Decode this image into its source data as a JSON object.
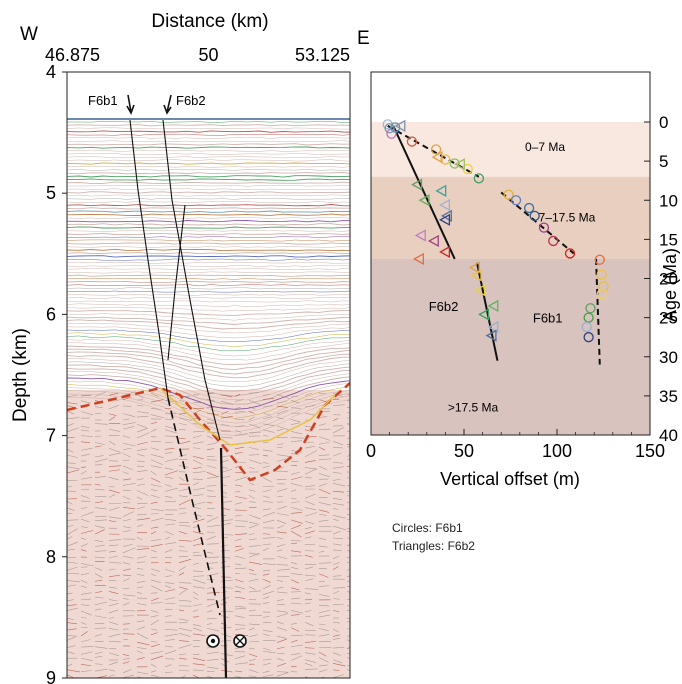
{
  "chart_data": [
    {
      "type": "seismic-section",
      "panel_letter": "W",
      "xlabel": "Distance (km)",
      "ylabel": "Depth (km)",
      "xlim": [
        46.875,
        53.125
      ],
      "ylim": [
        4,
        9
      ],
      "x_ticks": [
        "46.875",
        "50",
        "53.125"
      ],
      "y_ticks": [
        "4",
        "5",
        "6",
        "7",
        "8",
        "9"
      ],
      "faults": [
        {
          "name": "F6b1",
          "label": "F6b1"
        },
        {
          "name": "F6b2",
          "label": "F6b2"
        }
      ],
      "colors": {
        "basement": "#d04020",
        "seafloor": "#6a8ab0",
        "fault": "#111111"
      }
    },
    {
      "type": "scatter",
      "panel_letter": "E",
      "xlabel": "Vertical offset (m)",
      "ylabel": "Age (Ma)",
      "xlim": [
        0,
        150
      ],
      "ylim": [
        0,
        40
      ],
      "x_ticks": [
        "0",
        "50",
        "100",
        "150"
      ],
      "y_ticks": [
        "0",
        "5",
        "10",
        "15",
        "20",
        "25",
        "30",
        "35",
        "40"
      ],
      "zones": [
        {
          "label": "0–7 Ma",
          "from": 0,
          "to": 7,
          "color": "#f8e8e0"
        },
        {
          "label": "7–17.5 Ma",
          "from": 7,
          "to": 17.5,
          "color": "#e8cfc0"
        },
        {
          "label": ">17.5 Ma",
          "from": 17.5,
          "to": 40,
          "color": "#d8c3bf"
        }
      ],
      "series": [
        {
          "name": "F6b1",
          "marker": "circle",
          "points": [
            {
              "x": 9,
              "y": 0.3,
              "c": "#9ab8d8"
            },
            {
              "x": 10,
              "y": 0.8,
              "c": "#8090a8"
            },
            {
              "x": 11,
              "y": 1.5,
              "c": "#c070c0"
            },
            {
              "x": 13,
              "y": 0.7,
              "c": "#40a0c0"
            },
            {
              "x": 22,
              "y": 2.5,
              "c": "#d06040"
            },
            {
              "x": 35,
              "y": 3.5,
              "c": "#e0a040"
            },
            {
              "x": 40,
              "y": 4.8,
              "c": "#e8c040"
            },
            {
              "x": 45,
              "y": 5.3,
              "c": "#80c060"
            },
            {
              "x": 52,
              "y": 6.0,
              "c": "#f0d040"
            },
            {
              "x": 58,
              "y": 7.2,
              "c": "#40a060"
            },
            {
              "x": 74,
              "y": 9.3,
              "c": "#e0b040"
            },
            {
              "x": 78,
              "y": 10.0,
              "c": "#6080c0"
            },
            {
              "x": 85,
              "y": 11.0,
              "c": "#4070a0"
            },
            {
              "x": 88,
              "y": 12.0,
              "c": "#305080"
            },
            {
              "x": 93,
              "y": 13.5,
              "c": "#a04080"
            },
            {
              "x": 98,
              "y": 15.2,
              "c": "#c03050"
            },
            {
              "x": 107,
              "y": 16.8,
              "c": "#d02020"
            },
            {
              "x": 123,
              "y": 17.6,
              "c": "#e07040"
            },
            {
              "x": 124,
              "y": 19.5,
              "c": "#f0c040"
            },
            {
              "x": 125,
              "y": 21.0,
              "c": "#e8c040"
            },
            {
              "x": 124,
              "y": 22.0,
              "c": "#f0d060"
            },
            {
              "x": 118,
              "y": 23.8,
              "c": "#60a060"
            },
            {
              "x": 117,
              "y": 25.0,
              "c": "#40a040"
            },
            {
              "x": 116,
              "y": 26.2,
              "c": "#9ab0d0"
            },
            {
              "x": 117,
              "y": 27.5,
              "c": "#304080"
            }
          ]
        },
        {
          "name": "F6b2",
          "marker": "triangle",
          "points": [
            {
              "x": 16,
              "y": 0.5,
              "c": "#8090a8"
            },
            {
              "x": 36,
              "y": 4.5,
              "c": "#e8a040"
            },
            {
              "x": 48,
              "y": 5.4,
              "c": "#a0c060"
            },
            {
              "x": 25,
              "y": 8.0,
              "c": "#60a060"
            },
            {
              "x": 29,
              "y": 10.0,
              "c": "#60b060"
            },
            {
              "x": 38,
              "y": 8.8,
              "c": "#40a0a0"
            },
            {
              "x": 40,
              "y": 10.6,
              "c": "#a0b0d0"
            },
            {
              "x": 41,
              "y": 12.0,
              "c": "#5070a0"
            },
            {
              "x": 40,
              "y": 12.5,
              "c": "#304080"
            },
            {
              "x": 27,
              "y": 14.5,
              "c": "#c080c0"
            },
            {
              "x": 34,
              "y": 15.2,
              "c": "#a04080"
            },
            {
              "x": 40,
              "y": 16.6,
              "c": "#d02020"
            },
            {
              "x": 26,
              "y": 17.5,
              "c": "#e07040"
            },
            {
              "x": 56,
              "y": 18.6,
              "c": "#e0a040"
            },
            {
              "x": 57,
              "y": 19.6,
              "c": "#f0c040"
            },
            {
              "x": 59,
              "y": 21.5,
              "c": "#e8d040"
            },
            {
              "x": 66,
              "y": 23.5,
              "c": "#60b060"
            },
            {
              "x": 61,
              "y": 24.6,
              "c": "#40a060"
            },
            {
              "x": 66,
              "y": 26.2,
              "c": "#9ab0d0"
            },
            {
              "x": 65,
              "y": 27.3,
              "c": "#5070a0"
            }
          ]
        }
      ],
      "fit_lines": [
        {
          "style": "dashed",
          "x": [
            9,
            58
          ],
          "y": [
            0.5,
            7
          ]
        },
        {
          "style": "solid",
          "x": [
            12,
            45
          ],
          "y": [
            0.5,
            17.5
          ]
        },
        {
          "style": "dashed",
          "x": [
            70,
            109
          ],
          "y": [
            9,
            16.8
          ]
        },
        {
          "style": "solid",
          "x": [
            57,
            68
          ],
          "y": [
            18,
            30.5
          ]
        },
        {
          "style": "dashed",
          "x": [
            121,
            123
          ],
          "y": [
            17.5,
            31
          ]
        }
      ],
      "line_labels": [
        {
          "text": "F6b2",
          "x": 39,
          "y": 23.5
        },
        {
          "text": "F6b1",
          "x": 95,
          "y": 25.0
        }
      ]
    }
  ],
  "legend": {
    "circles": "Circles: F6b1",
    "triangles": "Triangles: F6b2"
  }
}
